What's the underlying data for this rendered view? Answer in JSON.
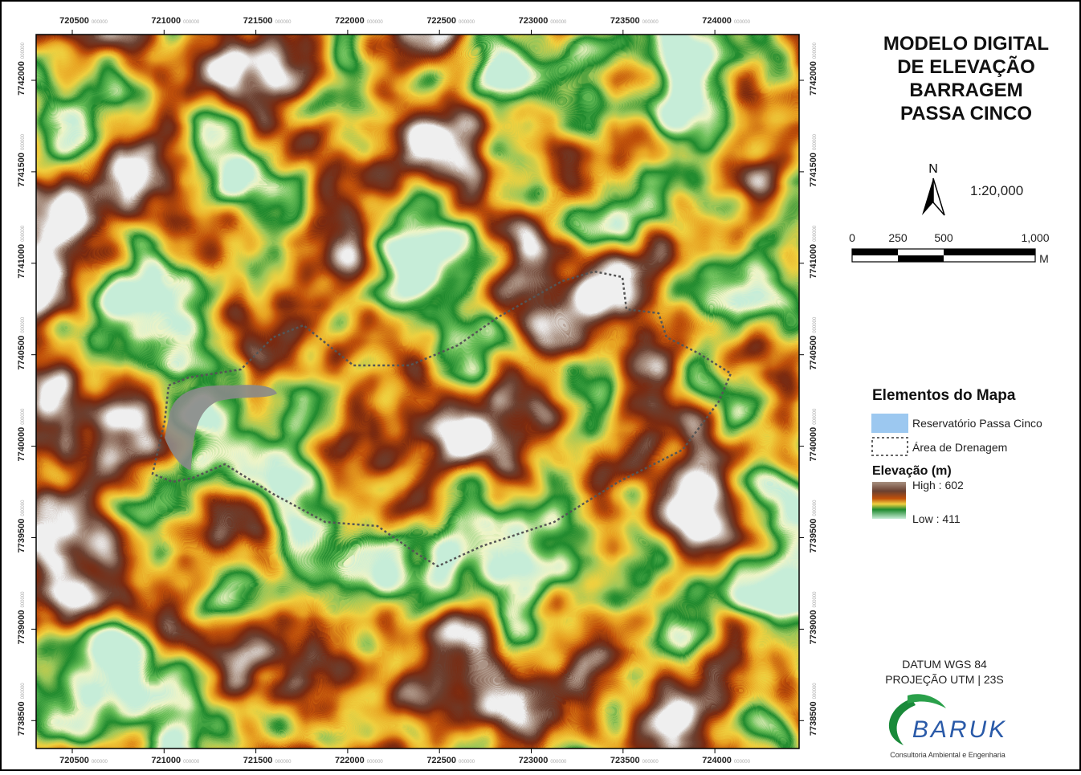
{
  "map": {
    "x_ticks": [
      720500,
      721000,
      721500,
      722000,
      722500,
      723000,
      723500,
      724000
    ],
    "y_ticks": [
      7742000,
      7741500,
      7741000,
      7740500,
      7740000,
      7739500,
      7739000,
      7738500
    ],
    "coord_suffix": "000000"
  },
  "title_lines": [
    "MODELO DIGITAL",
    "DE ELEVAÇÃO",
    "BARRAGEM",
    "PASSA CINCO"
  ],
  "north": "N",
  "scale": "1:20,000",
  "scale_bar": {
    "labels": [
      "0",
      "250",
      "500",
      "1,000"
    ],
    "unit": "M"
  },
  "legend": {
    "title": "Elementos do Mapa",
    "items": [
      "Reservatório Passa Cinco",
      "Área de Drenagem"
    ],
    "elevation_title": "Elevação (m)",
    "high": "High : 602",
    "low": "Low : 411"
  },
  "footer": {
    "datum": "DATUM WGS 84",
    "projection": "PROJEÇÃO UTM | 23S"
  },
  "logo": {
    "name": "BARUK",
    "tagline": "Consultoria Ambiental e Engenharia"
  }
}
